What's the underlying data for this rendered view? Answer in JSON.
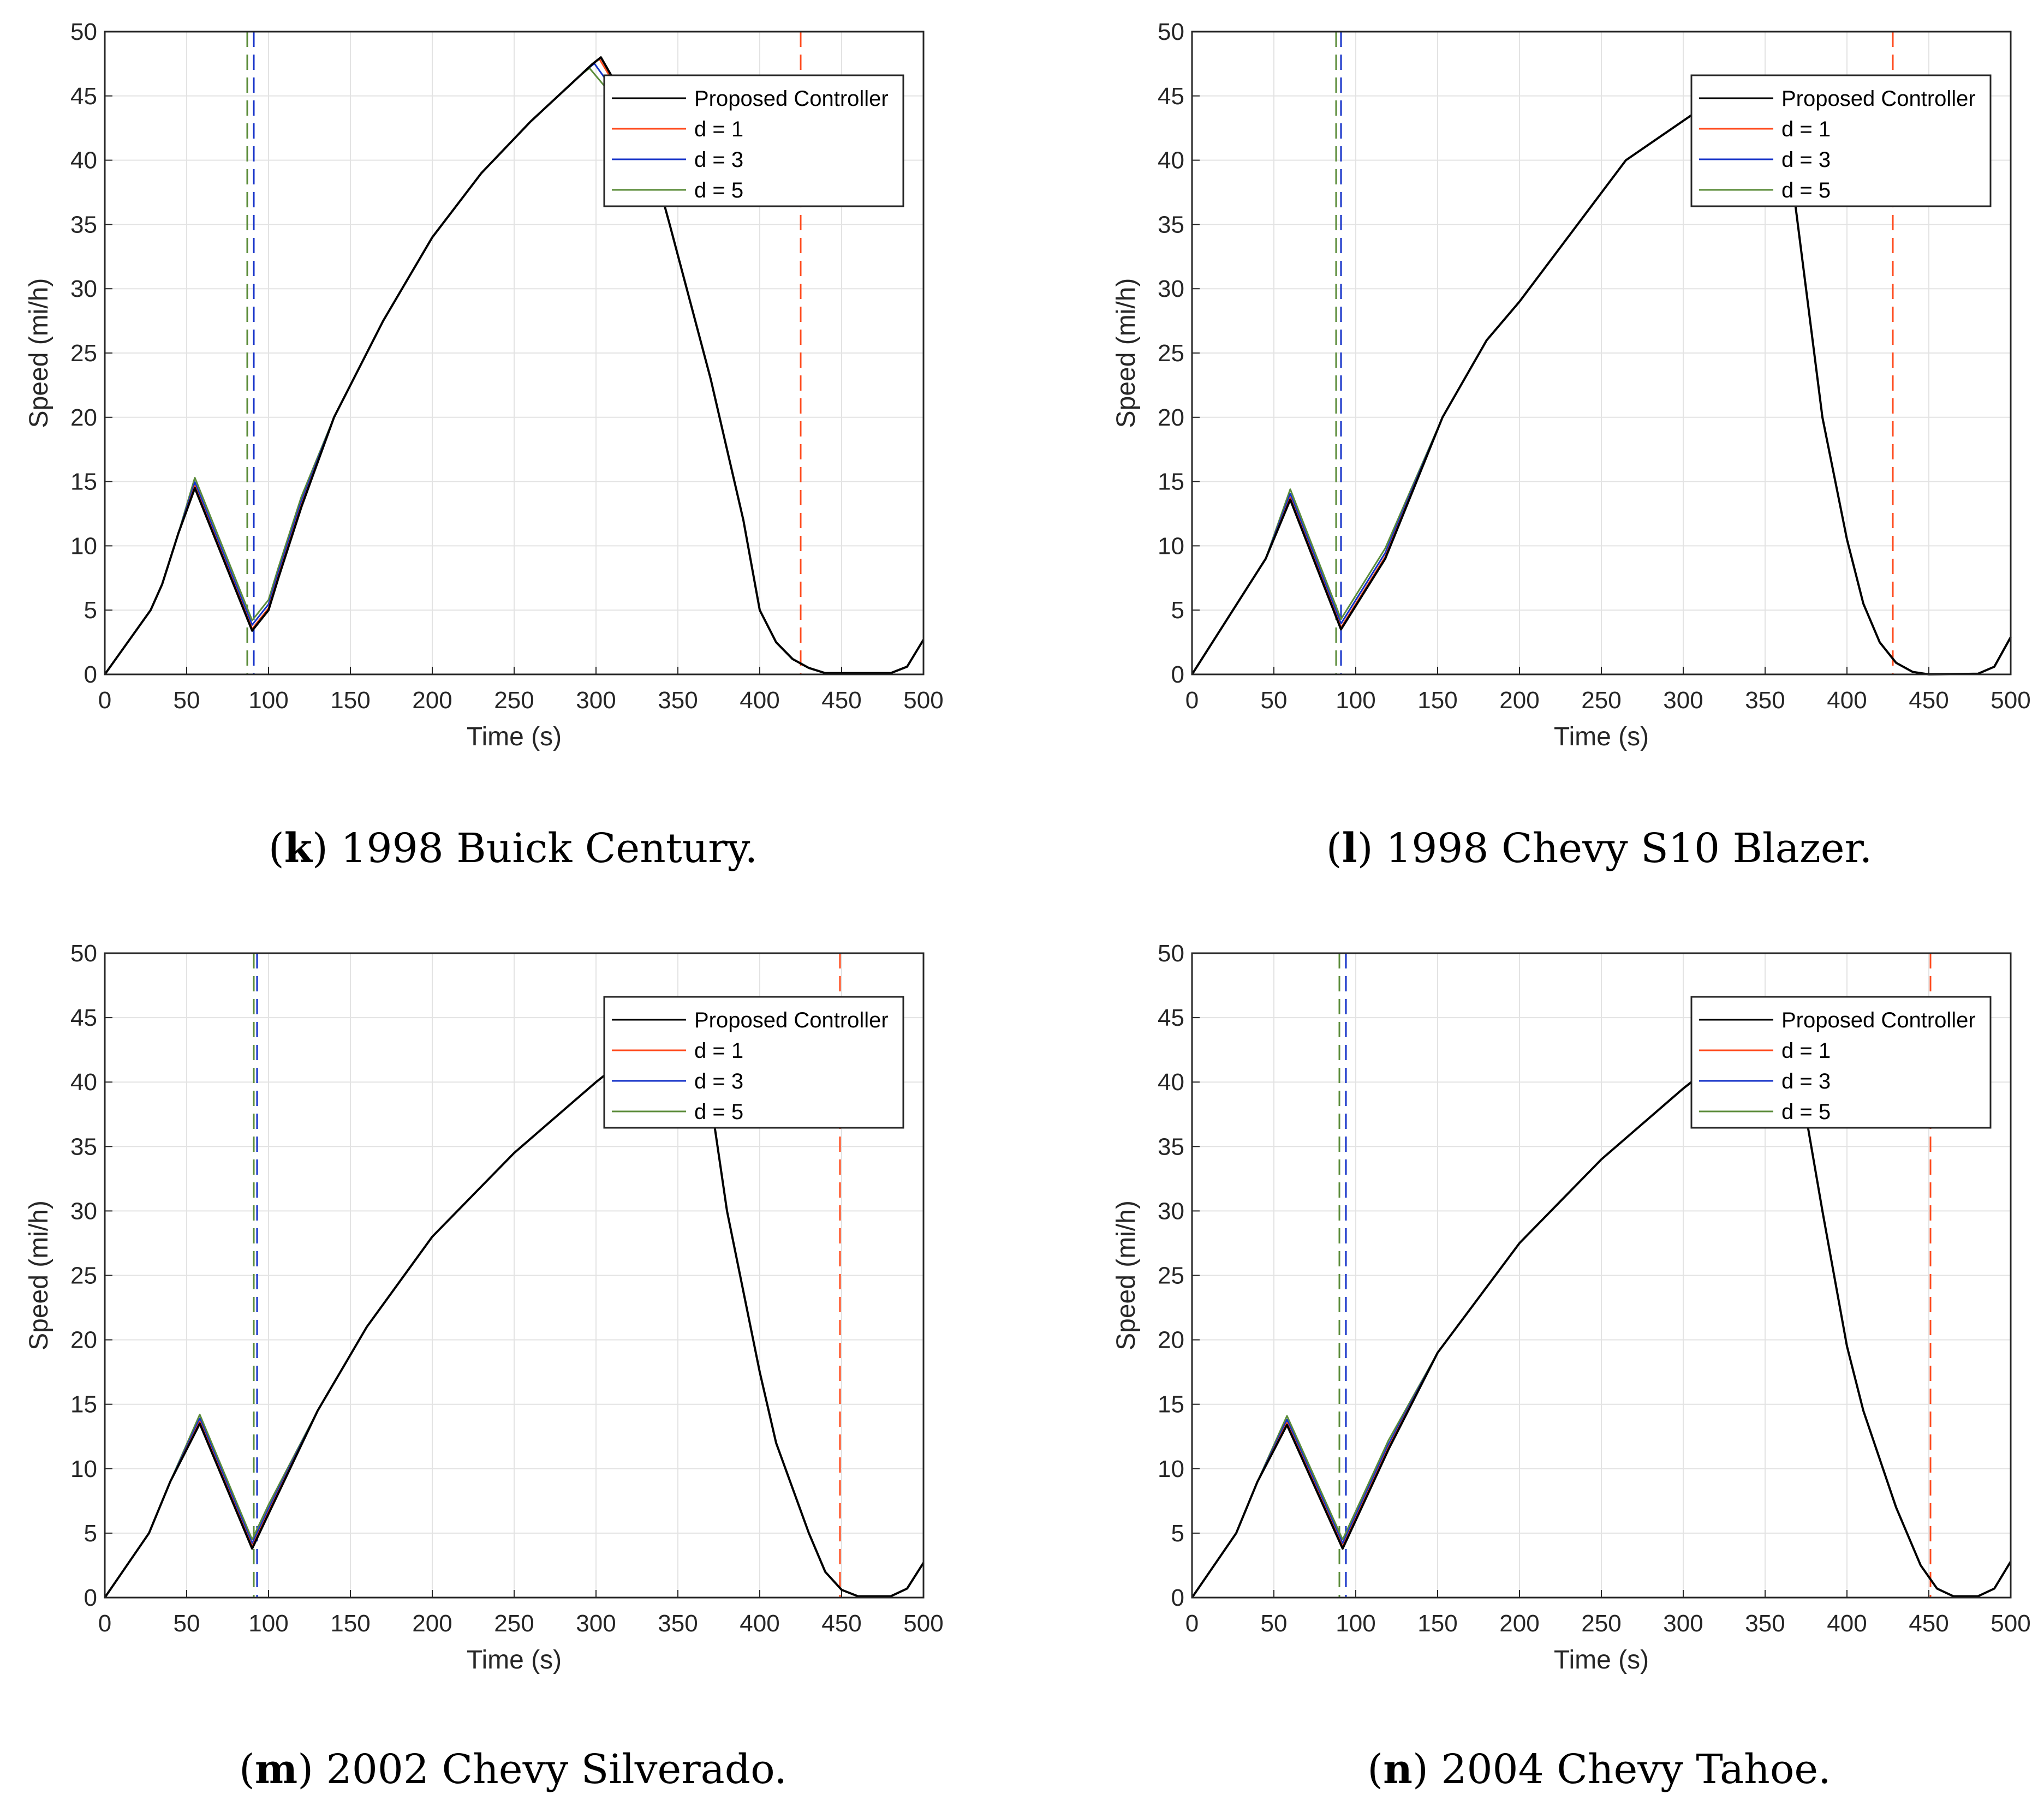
{
  "colors": {
    "proposed": "#000000",
    "d1": "#ff4a1c",
    "d3": "#1432c8",
    "d5": "#5b8c3a",
    "grid": "#e3e3e3",
    "axis": "#262626"
  },
  "chart_data": [
    {
      "type": "line",
      "panel_letter": "k",
      "caption": " 1998 Buick Century.",
      "xlabel": "Time (s)",
      "ylabel": "Speed (mi/h)",
      "xlim": [
        0,
        500
      ],
      "ylim": [
        0,
        50
      ],
      "xticks": [
        0,
        50,
        100,
        150,
        200,
        250,
        300,
        350,
        400,
        450,
        500
      ],
      "yticks": [
        0,
        5,
        10,
        15,
        20,
        25,
        30,
        35,
        40,
        45,
        50
      ],
      "grid": true,
      "legend_position": "top-right",
      "legend": [
        "Proposed Controller",
        "d = 1",
        "d = 3",
        "d = 5"
      ],
      "proposed": [
        [
          0,
          0
        ],
        [
          28,
          5
        ],
        [
          35,
          7
        ],
        [
          45,
          11
        ],
        [
          55,
          14.5
        ],
        [
          90,
          3.4
        ],
        [
          100,
          5
        ],
        [
          106,
          7.5
        ],
        [
          120,
          13
        ],
        [
          140,
          20
        ],
        [
          170,
          27.5
        ],
        [
          200,
          34
        ],
        [
          230,
          39
        ],
        [
          260,
          43
        ],
        [
          298,
          47.5
        ],
        [
          303,
          48
        ],
        [
          330,
          42
        ],
        [
          345,
          35
        ],
        [
          370,
          23
        ],
        [
          390,
          12
        ],
        [
          400,
          5
        ],
        [
          410,
          2.5
        ],
        [
          420,
          1.2
        ],
        [
          430,
          0.5
        ],
        [
          440,
          0.1
        ],
        [
          480,
          0.1
        ],
        [
          490,
          0.6
        ],
        [
          500,
          2.7
        ]
      ],
      "variant_offsets": {
        "d1": 0.15,
        "d3": 0.45,
        "d5": 0.8
      },
      "peak_shift_s": {
        "d1": -1,
        "d3": -4,
        "d5": -7
      },
      "threshold_lines": [
        {
          "series": "d5",
          "x": 87
        },
        {
          "series": "d3",
          "x": 91
        },
        {
          "series": "d1",
          "x": 425
        }
      ]
    },
    {
      "type": "line",
      "panel_letter": "l",
      "caption": " 1998 Chevy S10 Blazer.",
      "xlabel": "Time (s)",
      "ylabel": "Speed (mi/h)",
      "xlim": [
        0,
        500
      ],
      "ylim": [
        0,
        50
      ],
      "xticks": [
        0,
        50,
        100,
        150,
        200,
        250,
        300,
        350,
        400,
        450,
        500
      ],
      "yticks": [
        0,
        5,
        10,
        15,
        20,
        25,
        30,
        35,
        40,
        45,
        50
      ],
      "grid": true,
      "legend_position": "top-right",
      "legend": [
        "Proposed Controller",
        "d = 1",
        "d = 3",
        "d = 5"
      ],
      "proposed": [
        [
          0,
          0
        ],
        [
          45,
          9
        ],
        [
          60,
          13.6
        ],
        [
          91,
          3.5
        ],
        [
          118,
          9
        ],
        [
          153,
          20
        ],
        [
          180,
          26
        ],
        [
          200,
          29
        ],
        [
          265,
          40
        ],
        [
          305,
          43.5
        ],
        [
          340,
          44.5
        ],
        [
          365,
          40
        ],
        [
          385,
          20
        ],
        [
          400,
          10.5
        ],
        [
          410,
          5.5
        ],
        [
          420,
          2.5
        ],
        [
          430,
          0.9
        ],
        [
          440,
          0.2
        ],
        [
          450,
          0
        ],
        [
          480,
          0.05
        ],
        [
          490,
          0.6
        ],
        [
          500,
          2.9
        ]
      ],
      "variant_offsets": {
        "d1": 0.15,
        "d3": 0.45,
        "d5": 0.8
      },
      "peak_shift_s": {
        "d1": 0,
        "d3": 0,
        "d5": 0
      },
      "threshold_lines": [
        {
          "series": "d5",
          "x": 88
        },
        {
          "series": "d3",
          "x": 91
        },
        {
          "series": "d1",
          "x": 428
        }
      ]
    },
    {
      "type": "line",
      "panel_letter": "m",
      "caption": " 2002 Chevy Silverado.",
      "xlabel": "Time (s)",
      "ylabel": "Speed (mi/h)",
      "xlim": [
        0,
        500
      ],
      "ylim": [
        0,
        50
      ],
      "xticks": [
        0,
        50,
        100,
        150,
        200,
        250,
        300,
        350,
        400,
        450,
        500
      ],
      "yticks": [
        0,
        5,
        10,
        15,
        20,
        25,
        30,
        35,
        40,
        45,
        50
      ],
      "grid": true,
      "legend_position": "top-right",
      "legend": [
        "Proposed Controller",
        "d = 1",
        "d = 3",
        "d = 5"
      ],
      "proposed": [
        [
          0,
          0
        ],
        [
          27,
          5
        ],
        [
          40,
          9
        ],
        [
          58,
          13.5
        ],
        [
          90,
          3.8
        ],
        [
          100,
          6.5
        ],
        [
          130,
          14.5
        ],
        [
          160,
          21
        ],
        [
          200,
          28
        ],
        [
          250,
          34.5
        ],
        [
          300,
          40
        ],
        [
          330,
          43
        ],
        [
          365,
          43
        ],
        [
          380,
          30
        ],
        [
          400,
          17.5
        ],
        [
          410,
          12
        ],
        [
          430,
          5
        ],
        [
          440,
          2
        ],
        [
          450,
          0.6
        ],
        [
          460,
          0.1
        ],
        [
          480,
          0.1
        ],
        [
          490,
          0.7
        ],
        [
          500,
          2.7
        ]
      ],
      "variant_offsets": {
        "d1": 0.15,
        "d3": 0.4,
        "d5": 0.7
      },
      "peak_shift_s": {
        "d1": 0,
        "d3": 0,
        "d5": 0
      },
      "threshold_lines": [
        {
          "series": "d5",
          "x": 91
        },
        {
          "series": "d3",
          "x": 93
        },
        {
          "series": "d1",
          "x": 449
        }
      ]
    },
    {
      "type": "line",
      "panel_letter": "n",
      "caption": " 2004 Chevy Tahoe.",
      "xlabel": "Time (s)",
      "ylabel": "Speed (mi/h)",
      "xlim": [
        0,
        500
      ],
      "ylim": [
        0,
        50
      ],
      "xticks": [
        0,
        50,
        100,
        150,
        200,
        250,
        300,
        350,
        400,
        450,
        500
      ],
      "yticks": [
        0,
        5,
        10,
        15,
        20,
        25,
        30,
        35,
        40,
        45,
        50
      ],
      "grid": true,
      "legend_position": "top-right",
      "legend": [
        "Proposed Controller",
        "d = 1",
        "d = 3",
        "d = 5"
      ],
      "proposed": [
        [
          0,
          0
        ],
        [
          27,
          5
        ],
        [
          40,
          9
        ],
        [
          58,
          13.4
        ],
        [
          92,
          3.8
        ],
        [
          100,
          6
        ],
        [
          120,
          11.5
        ],
        [
          150,
          19
        ],
        [
          200,
          27.5
        ],
        [
          250,
          34
        ],
        [
          300,
          39.5
        ],
        [
          330,
          42.5
        ],
        [
          368,
          42.5
        ],
        [
          385,
          30
        ],
        [
          400,
          19.5
        ],
        [
          410,
          14.5
        ],
        [
          430,
          7
        ],
        [
          445,
          2.5
        ],
        [
          455,
          0.7
        ],
        [
          465,
          0.1
        ],
        [
          480,
          0.1
        ],
        [
          490,
          0.7
        ],
        [
          500,
          2.8
        ]
      ],
      "variant_offsets": {
        "d1": 0.15,
        "d3": 0.4,
        "d5": 0.7
      },
      "peak_shift_s": {
        "d1": 0,
        "d3": 0,
        "d5": 0
      },
      "threshold_lines": [
        {
          "series": "d5",
          "x": 90
        },
        {
          "series": "d3",
          "x": 94
        },
        {
          "series": "d1",
          "x": 451
        }
      ]
    }
  ]
}
